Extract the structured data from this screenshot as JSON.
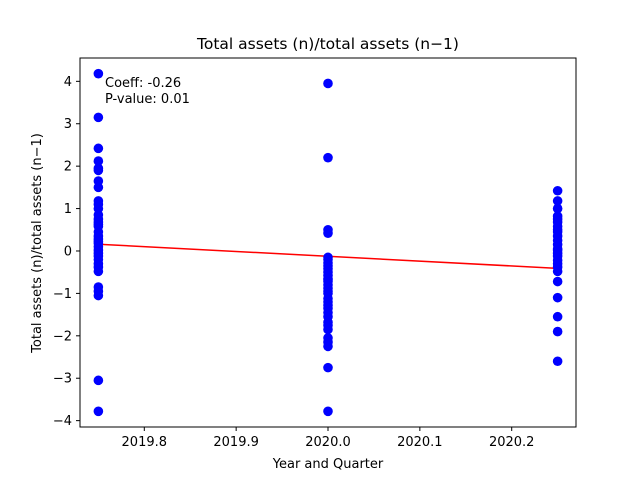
{
  "chart_data": {
    "type": "scatter",
    "title": "Total assets (n)/total assets (n−1)",
    "xlabel": "Year and Quarter",
    "ylabel": "Total assets (n)/total assets (n−1)",
    "xlim": [
      2019.73,
      2020.27
    ],
    "ylim": [
      -4.15,
      4.55
    ],
    "xticks": [
      2019.8,
      2019.9,
      2020.0,
      2020.1,
      2020.2
    ],
    "xtick_labels": [
      "2019.8",
      "2019.9",
      "2020.0",
      "2020.1",
      "2020.2"
    ],
    "yticks": [
      -4,
      -3,
      -2,
      -1,
      0,
      1,
      2,
      3,
      4
    ],
    "ytick_labels": [
      "−4",
      "−3",
      "−2",
      "−1",
      "0",
      "1",
      "2",
      "3",
      "4"
    ],
    "grid": false,
    "annotations": [
      "Coeff: -0.26",
      "P-value: 0.01"
    ],
    "colors": {
      "points": "#0000ff",
      "fit_line": "#ff0000"
    },
    "series": [
      {
        "kind": "points",
        "x": [
          2019.75,
          2019.75,
          2019.75,
          2019.75,
          2019.75,
          2019.75,
          2019.75,
          2019.75,
          2019.75,
          2019.75,
          2019.75,
          2019.75,
          2019.75,
          2019.75,
          2019.75,
          2019.75,
          2019.75,
          2019.75,
          2019.75,
          2019.75,
          2019.75,
          2019.75,
          2019.75,
          2019.75,
          2019.75,
          2019.75,
          2019.75,
          2019.75,
          2019.75,
          2019.75,
          2019.75,
          2019.75,
          2019.75,
          2019.75,
          2020.0,
          2020.0,
          2020.0,
          2020.0,
          2020.0,
          2020.0,
          2020.0,
          2020.0,
          2020.0,
          2020.0,
          2020.0,
          2020.0,
          2020.0,
          2020.0,
          2020.0,
          2020.0,
          2020.0,
          2020.0,
          2020.0,
          2020.0,
          2020.0,
          2020.0,
          2020.0,
          2020.0,
          2020.0,
          2020.0,
          2020.0,
          2020.0,
          2020.0,
          2020.0,
          2020.0,
          2020.0,
          2020.25,
          2020.25,
          2020.25,
          2020.25,
          2020.25,
          2020.25,
          2020.25,
          2020.25,
          2020.25,
          2020.25,
          2020.25,
          2020.25,
          2020.25,
          2020.25,
          2020.25,
          2020.25,
          2020.25,
          2020.25,
          2020.25,
          2020.25,
          2020.25,
          2020.25,
          2020.25,
          2020.25,
          2020.25
        ],
        "y": [
          4.18,
          3.15,
          2.42,
          2.12,
          1.95,
          1.9,
          1.65,
          1.5,
          1.18,
          1.1,
          1.0,
          0.85,
          0.75,
          0.68,
          0.58,
          0.45,
          0.35,
          0.28,
          0.18,
          0.1,
          0.02,
          -0.05,
          -0.12,
          -0.2,
          -0.3,
          -0.38,
          -0.48,
          -0.85,
          -0.95,
          -1.05,
          -3.05,
          -3.78,
          0.62,
          0.22,
          3.95,
          2.2,
          0.5,
          0.42,
          -0.15,
          -0.2,
          -0.28,
          -0.35,
          -0.42,
          -0.5,
          -0.58,
          -0.65,
          -0.72,
          -0.8,
          -0.88,
          -0.95,
          -1.0,
          -1.2,
          -1.28,
          -1.35,
          -1.45,
          -1.55,
          -1.68,
          -1.75,
          -1.85,
          -2.05,
          -2.15,
          -2.25,
          -2.75,
          -3.78,
          -0.68,
          -1.12,
          1.42,
          1.18,
          1.0,
          0.82,
          0.75,
          0.68,
          0.58,
          0.45,
          0.35,
          0.25,
          0.15,
          0.05,
          -0.05,
          -0.12,
          -0.22,
          -0.3,
          -0.38,
          -0.48,
          -0.72,
          -1.1,
          -1.55,
          -1.9,
          -2.6,
          0.5,
          0.02
        ]
      },
      {
        "kind": "fit_line",
        "x": [
          2019.75,
          2020.25
        ],
        "y": [
          0.16,
          -0.41
        ]
      }
    ]
  }
}
